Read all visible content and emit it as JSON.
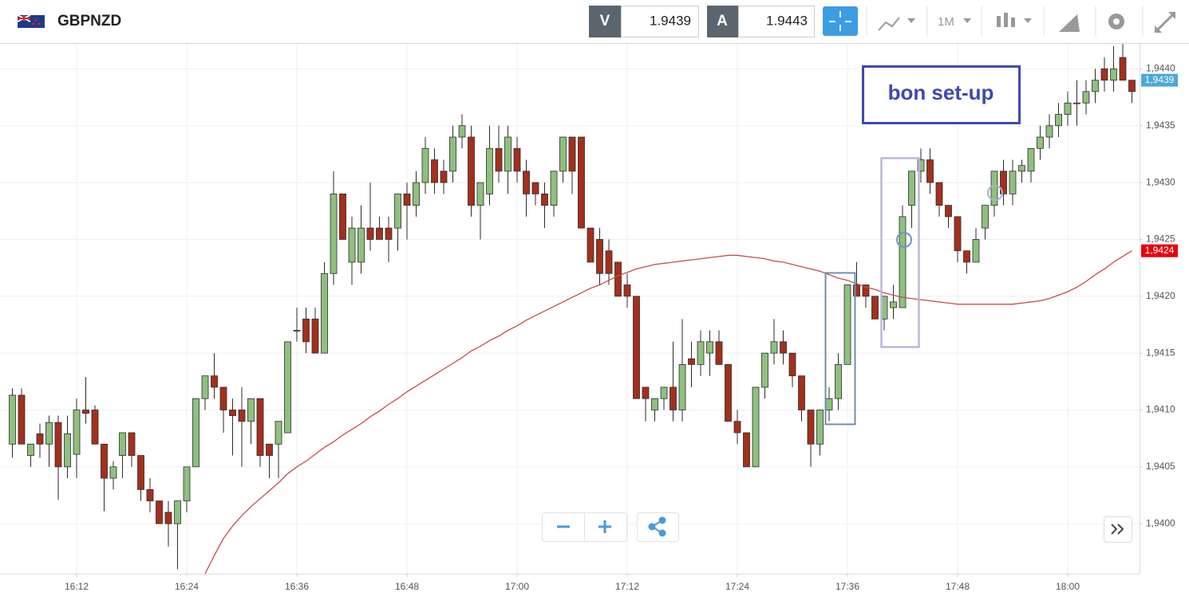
{
  "header": {
    "symbol": "GBPNZD",
    "sell_label": "V",
    "sell_price": "1.9439",
    "buy_label": "A",
    "buy_price": "1.9443",
    "timeframe": "1M"
  },
  "chart_data": {
    "type": "candlestick",
    "annotation": "bon set-up",
    "categories": [
      null,
      null,
      null,
      null,
      null,
      null,
      null,
      "16:12",
      null,
      null,
      null,
      null,
      null,
      null,
      null,
      null,
      null,
      null,
      null,
      "16:24",
      null,
      null,
      null,
      null,
      null,
      null,
      null,
      null,
      null,
      null,
      null,
      "16:36",
      null,
      null,
      null,
      null,
      null,
      null,
      null,
      null,
      null,
      null,
      null,
      "16:48",
      null,
      null,
      null,
      null,
      null,
      null,
      null,
      null,
      null,
      null,
      null,
      "17:00",
      null,
      null,
      null,
      null,
      null,
      null,
      null,
      null,
      null,
      null,
      null,
      "17:12",
      null,
      null,
      null,
      null,
      null,
      null,
      null,
      null,
      null,
      null,
      null,
      "17:24",
      null,
      null,
      null,
      null,
      null,
      null,
      null,
      null,
      null,
      null,
      null,
      "17:36",
      null,
      null,
      null,
      null,
      null,
      null,
      null,
      null,
      null,
      null,
      null,
      "17:48",
      null,
      null,
      null,
      null,
      null,
      null,
      null,
      null,
      null,
      null,
      null,
      "18:00",
      null,
      null,
      null,
      null,
      null,
      null,
      null
    ],
    "ohlc": [
      [
        1.9407,
        1.94119,
        1.94058,
        1.94113
      ],
      [
        1.94113,
        1.94119,
        1.9407,
        1.9407
      ],
      [
        1.9406,
        1.9407,
        1.9405,
        1.9407
      ],
      [
        1.94079,
        1.94088,
        1.94058,
        1.9407
      ],
      [
        1.9407,
        1.94095,
        1.9405,
        1.94089
      ],
      [
        1.94089,
        1.94095,
        1.94021,
        1.9405
      ],
      [
        1.9405,
        1.94095,
        1.9404,
        1.94079
      ],
      [
        1.94061,
        1.9411,
        1.9404,
        1.941
      ],
      [
        1.941,
        1.94129,
        1.94088,
        1.94097
      ],
      [
        1.941,
        1.94104,
        1.9407,
        1.9407
      ],
      [
        1.9407,
        1.9407,
        1.94011,
        1.9404
      ],
      [
        1.9404,
        1.94055,
        1.9403,
        1.9405
      ],
      [
        1.9406,
        1.9408,
        1.9404,
        1.9408
      ],
      [
        1.9408,
        1.9408,
        1.9405,
        1.9406
      ],
      [
        1.9406,
        1.9406,
        1.9402,
        1.9403
      ],
      [
        1.9403,
        1.9404,
        1.9401,
        1.9402
      ],
      [
        1.9402,
        1.9402,
        1.94,
        1.94
      ],
      [
        1.9401,
        1.9402,
        1.9398,
        1.94
      ],
      [
        1.94,
        1.9402,
        1.9396,
        1.9402
      ],
      [
        1.9402,
        1.9405,
        1.9401,
        1.9405
      ],
      [
        1.9405,
        1.9411,
        1.9405,
        1.9411
      ],
      [
        1.9411,
        1.9413,
        1.941,
        1.9413
      ],
      [
        1.9413,
        1.9415,
        1.9411,
        1.9412
      ],
      [
        1.9412,
        1.9412,
        1.9408,
        1.941
      ],
      [
        1.941,
        1.9411,
        1.9406,
        1.94095
      ],
      [
        1.941,
        1.9412,
        1.9405,
        1.9409
      ],
      [
        1.9409,
        1.9411,
        1.9407,
        1.9411
      ],
      [
        1.9411,
        1.9411,
        1.9405,
        1.9406
      ],
      [
        1.9407,
        1.9407,
        1.9404,
        1.9406
      ],
      [
        1.9407,
        1.9409,
        1.9404,
        1.9409
      ],
      [
        1.9408,
        1.9416,
        1.9408,
        1.9416
      ],
      [
        1.9417,
        1.9419,
        1.9416,
        1.9417
      ],
      [
        1.9418,
        1.9419,
        1.9415,
        1.9416
      ],
      [
        1.9418,
        1.9419,
        1.9415,
        1.9415
      ],
      [
        1.9415,
        1.9423,
        1.9415,
        1.9422
      ],
      [
        1.9422,
        1.9431,
        1.9421,
        1.9429
      ],
      [
        1.9429,
        1.9429,
        1.9425,
        1.9425
      ],
      [
        1.9423,
        1.9427,
        1.9421,
        1.9426
      ],
      [
        1.9423,
        1.9428,
        1.9422,
        1.9426
      ],
      [
        1.9426,
        1.943,
        1.9424,
        1.9425
      ],
      [
        1.9426,
        1.9427,
        1.9425,
        1.9425
      ],
      [
        1.9426,
        1.9427,
        1.9423,
        1.9425
      ],
      [
        1.9426,
        1.9429,
        1.9424,
        1.9429
      ],
      [
        1.9429,
        1.943,
        1.9425,
        1.9428
      ],
      [
        1.9428,
        1.9431,
        1.9427,
        1.943
      ],
      [
        1.943,
        1.9434,
        1.9429,
        1.9433
      ],
      [
        1.9432,
        1.9433,
        1.9429,
        1.943
      ],
      [
        1.9431,
        1.9432,
        1.9429,
        1.943
      ],
      [
        1.9431,
        1.9435,
        1.943,
        1.9434
      ],
      [
        1.9434,
        1.9436,
        1.9433,
        1.9435
      ],
      [
        1.9434,
        1.9435,
        1.9427,
        1.9428
      ],
      [
        1.9428,
        1.943,
        1.9425,
        1.943
      ],
      [
        1.9429,
        1.9435,
        1.9428,
        1.9433
      ],
      [
        1.9433,
        1.9435,
        1.943,
        1.9431
      ],
      [
        1.9431,
        1.9435,
        1.9429,
        1.9434
      ],
      [
        1.9433,
        1.9434,
        1.943,
        1.9431
      ],
      [
        1.9431,
        1.9432,
        1.9427,
        1.9429
      ],
      [
        1.943,
        1.943,
        1.9428,
        1.9429
      ],
      [
        1.9429,
        1.943,
        1.9426,
        1.9428
      ],
      [
        1.9428,
        1.9431,
        1.9427,
        1.9431
      ],
      [
        1.9431,
        1.9434,
        1.943,
        1.9434
      ],
      [
        1.9434,
        1.9434,
        1.9429,
        1.9431
      ],
      [
        1.9434,
        1.9434,
        1.9426,
        1.9426
      ],
      [
        1.9426,
        1.9426,
        1.9423,
        1.9423
      ],
      [
        1.9425,
        1.9426,
        1.9421,
        1.9422
      ],
      [
        1.9424,
        1.9425,
        1.9421,
        1.9422
      ],
      [
        1.9423,
        1.9423,
        1.942,
        1.942
      ],
      [
        1.9421,
        1.9422,
        1.9419,
        1.942
      ],
      [
        1.942,
        1.942,
        1.9411,
        1.9411
      ],
      [
        1.9412,
        1.9412,
        1.9409,
        1.9411
      ],
      [
        1.941,
        1.9411,
        1.9409,
        1.9411
      ],
      [
        1.9411,
        1.9412,
        1.941,
        1.9412
      ],
      [
        1.9412,
        1.9416,
        1.9409,
        1.941
      ],
      [
        1.941,
        1.9418,
        1.9409,
        1.9414
      ],
      [
        1.94145,
        1.9416,
        1.9412,
        1.9414
      ],
      [
        1.9414,
        1.9417,
        1.9413,
        1.9416
      ],
      [
        1.9415,
        1.9417,
        1.9413,
        1.9416
      ],
      [
        1.9416,
        1.9417,
        1.9414,
        1.9414
      ],
      [
        1.9414,
        1.9414,
        1.9409,
        1.9409
      ],
      [
        1.9409,
        1.941,
        1.9407,
        1.9408
      ],
      [
        1.9408,
        1.9408,
        1.9405,
        1.9405
      ],
      [
        1.9405,
        1.9412,
        1.9405,
        1.9412
      ],
      [
        1.9412,
        1.9415,
        1.9411,
        1.9415
      ],
      [
        1.9415,
        1.9418,
        1.9414,
        1.9416
      ],
      [
        1.9416,
        1.9417,
        1.9414,
        1.9415
      ],
      [
        1.9415,
        1.9415,
        1.9412,
        1.9413
      ],
      [
        1.9413,
        1.9413,
        1.9409,
        1.941
      ],
      [
        1.941,
        1.941,
        1.9405,
        1.9407
      ],
      [
        1.9407,
        1.941,
        1.9406,
        1.941
      ],
      [
        1.941,
        1.9412,
        1.9409,
        1.9411
      ],
      [
        1.9411,
        1.9415,
        1.941,
        1.9414
      ],
      [
        1.9414,
        1.9421,
        1.9414,
        1.9421
      ],
      [
        1.9421,
        1.9423,
        1.942,
        1.942
      ],
      [
        1.9421,
        1.9421,
        1.9419,
        1.942
      ],
      [
        1.942,
        1.942,
        1.9418,
        1.9418
      ],
      [
        1.9418,
        1.942,
        1.9417,
        1.942
      ],
      [
        1.9419,
        1.9421,
        1.9418,
        1.94195
      ],
      [
        1.9419,
        1.9428,
        1.9419,
        1.9427
      ],
      [
        1.9428,
        1.9431,
        1.9426,
        1.9431
      ],
      [
        1.9431,
        1.9433,
        1.943,
        1.9432
      ],
      [
        1.9432,
        1.9433,
        1.9429,
        1.943
      ],
      [
        1.943,
        1.943,
        1.9427,
        1.9428
      ],
      [
        1.9428,
        1.9428,
        1.9426,
        1.9427
      ],
      [
        1.9427,
        1.9427,
        1.9423,
        1.9424
      ],
      [
        1.9424,
        1.9424,
        1.9422,
        1.9423
      ],
      [
        1.9423,
        1.9426,
        1.9423,
        1.9425
      ],
      [
        1.9426,
        1.9428,
        1.9425,
        1.9428
      ],
      [
        1.9428,
        1.9431,
        1.9427,
        1.9431
      ],
      [
        1.9431,
        1.9432,
        1.9428,
        1.9429
      ],
      [
        1.9429,
        1.9432,
        1.9428,
        1.9431
      ],
      [
        1.9431,
        1.9432,
        1.943,
        1.94315
      ],
      [
        1.9431,
        1.9433,
        1.943,
        1.9433
      ],
      [
        1.9433,
        1.9435,
        1.9432,
        1.9434
      ],
      [
        1.9434,
        1.9436,
        1.9433,
        1.9435
      ],
      [
        1.9435,
        1.9437,
        1.9434,
        1.9436
      ],
      [
        1.9436,
        1.9438,
        1.9435,
        1.9437
      ],
      [
        1.9437,
        1.9439,
        1.9435,
        1.9437
      ],
      [
        1.9437,
        1.9439,
        1.9436,
        1.9438
      ],
      [
        1.9438,
        1.944,
        1.9437,
        1.9439
      ],
      [
        1.944,
        1.9441,
        1.9438,
        1.9439
      ],
      [
        1.9439,
        1.9442,
        1.9438,
        1.944
      ],
      [
        1.9441,
        1.9443,
        1.9439,
        1.9439
      ],
      [
        1.9439,
        1.9439,
        1.9437,
        1.9438
      ]
    ],
    "up_color": "#8fc07f",
    "down_color": "#a3301c",
    "outline_color": "#2b2b2b",
    "ma": {
      "color": "#c0504d",
      "values": [
        null,
        null,
        null,
        null,
        null,
        null,
        null,
        null,
        null,
        null,
        null,
        null,
        null,
        null,
        null,
        null,
        null,
        null,
        null,
        null,
        null,
        1.93956,
        1.93972,
        1.93987,
        1.93998,
        1.94007,
        1.94015,
        1.94022,
        1.94029,
        1.94036,
        1.94044,
        1.9405,
        1.94055,
        1.94061,
        1.94067,
        1.94072,
        1.94078,
        1.94083,
        1.94088,
        1.94094,
        1.94099,
        1.94105,
        1.9411,
        1.94116,
        1.94121,
        1.94126,
        1.94131,
        1.94136,
        1.94141,
        1.94146,
        1.94152,
        1.94156,
        1.94161,
        1.94165,
        1.9417,
        1.94174,
        1.94179,
        1.94183,
        1.94187,
        1.94191,
        1.94195,
        1.94199,
        1.94203,
        1.94207,
        1.9421,
        1.94214,
        1.94218,
        1.94221,
        1.94224,
        1.94226,
        1.94228,
        1.94229,
        1.9423,
        1.94231,
        1.94232,
        1.94233,
        1.94234,
        1.94235,
        1.94236,
        1.94236,
        1.94235,
        1.94234,
        1.94233,
        1.94231,
        1.9423,
        1.94228,
        1.94226,
        1.94224,
        1.94222,
        1.94219,
        1.94216,
        1.94214,
        1.94211,
        1.94208,
        1.94206,
        1.94203,
        1.94201,
        1.94199,
        1.94198,
        1.94197,
        1.94196,
        1.94195,
        1.94194,
        1.94193,
        1.94193,
        1.94193,
        1.94193,
        1.94193,
        1.94193,
        1.94193,
        1.94194,
        1.94195,
        1.94196,
        1.94198,
        1.94201,
        1.94204,
        1.94208,
        1.94213,
        1.94219,
        1.94224,
        1.9423,
        1.94235,
        1.9424
      ]
    },
    "ylim": [
      1.93956,
      1.94422
    ],
    "yticks": [
      {
        "value": 1.94,
        "label": "1,9400"
      },
      {
        "value": 1.9405,
        "label": "1,9405"
      },
      {
        "value": 1.941,
        "label": "1,9410"
      },
      {
        "value": 1.9415,
        "label": "1,9415"
      },
      {
        "value": 1.942,
        "label": "1,9420"
      },
      {
        "value": 1.9425,
        "label": "1,9425"
      },
      {
        "value": 1.943,
        "label": "1,9430"
      },
      {
        "value": 1.9435,
        "label": "1,9435"
      },
      {
        "value": 1.944,
        "label": "1,9440"
      }
    ],
    "price_tags": [
      {
        "value": 1.9439,
        "label": "1,9439",
        "color": "#4aa8d8"
      },
      {
        "value": 1.9424,
        "label": "1,9424",
        "color": "#e8000b"
      }
    ],
    "grid": true
  }
}
